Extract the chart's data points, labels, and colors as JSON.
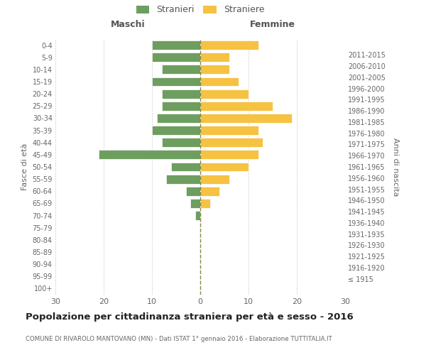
{
  "age_groups": [
    "100+",
    "95-99",
    "90-94",
    "85-89",
    "80-84",
    "75-79",
    "70-74",
    "65-69",
    "60-64",
    "55-59",
    "50-54",
    "45-49",
    "40-44",
    "35-39",
    "30-34",
    "25-29",
    "20-24",
    "15-19",
    "10-14",
    "5-9",
    "0-4"
  ],
  "birth_years": [
    "≤ 1915",
    "1916-1920",
    "1921-1925",
    "1926-1930",
    "1931-1935",
    "1936-1940",
    "1941-1945",
    "1946-1950",
    "1951-1955",
    "1956-1960",
    "1961-1965",
    "1966-1970",
    "1971-1975",
    "1976-1980",
    "1981-1985",
    "1986-1990",
    "1991-1995",
    "1996-2000",
    "2001-2005",
    "2006-2010",
    "2011-2015"
  ],
  "maschi": [
    0,
    0,
    0,
    0,
    0,
    0,
    1,
    2,
    3,
    7,
    6,
    21,
    8,
    10,
    9,
    8,
    8,
    10,
    8,
    10,
    10
  ],
  "femmine": [
    0,
    0,
    0,
    0,
    0,
    0,
    0,
    2,
    4,
    6,
    10,
    12,
    13,
    12,
    19,
    15,
    10,
    8,
    6,
    6,
    12
  ],
  "color_maschi": "#6e9e5f",
  "color_femmine": "#f5c242",
  "title": "Popolazione per cittadinanza straniera per età e sesso - 2016",
  "subtitle": "COMUNE DI RIVAROLO MANTOVANO (MN) - Dati ISTAT 1° gennaio 2016 - Elaborazione TUTTITALIA.IT",
  "xlabel_left": "Maschi",
  "xlabel_right": "Femmine",
  "ylabel_left": "Fasce di età",
  "ylabel_right": "Anni di nascita",
  "legend_stranieri": "Stranieri",
  "legend_straniere": "Straniere",
  "xlim": 30,
  "background_color": "#ffffff",
  "grid_color": "#cccccc",
  "dashed_line_color": "#888844"
}
